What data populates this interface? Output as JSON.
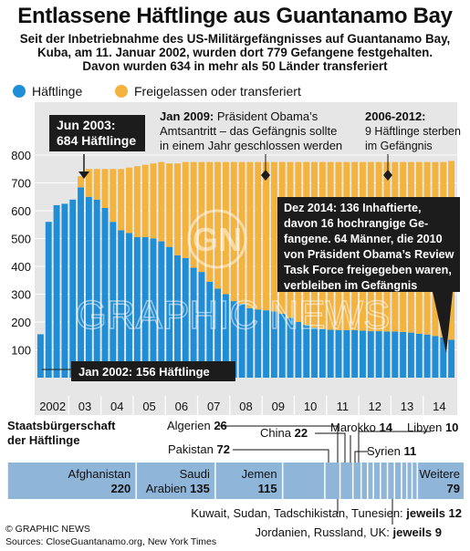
{
  "header": {
    "title": "Entlassene Häftlinge aus Guantanamo Bay",
    "subtitle_lines": [
      "Seit der Inbetriebnahme des US-Militärgefängnisses auf Guantanamo Bay,",
      "Kuba, am 11. Januar 2002, wurden dort 779 Gefangene festgehalten.",
      "Davon wurden 634 in mehr als 50 Länder transferiert"
    ]
  },
  "legend": {
    "detainees": "Häftlinge",
    "released": "Freigelassen oder transferiert"
  },
  "colors": {
    "blue": "#1f8ed6",
    "orange": "#f3b33d",
    "chart_bg": "#e6e6e6",
    "callout_bg": "#1c1c1c",
    "nationality_bar": "#8fb6d9"
  },
  "chart_data": {
    "type": "bar",
    "stacked": true,
    "ylim": [
      0,
      800
    ],
    "yticks": [
      100,
      200,
      300,
      400,
      500,
      600,
      700,
      800
    ],
    "year_labels": [
      "2002",
      "03",
      "04",
      "05",
      "06",
      "07",
      "08",
      "09",
      "10",
      "11",
      "12",
      "13",
      "14"
    ],
    "x": [
      "2002-Q1",
      "2002-Q2",
      "2002-Q3",
      "2002-Q4",
      "2003-Q1",
      "2003-Q2",
      "2003-Q3",
      "2003-Q4",
      "2004-Q1",
      "2004-Q2",
      "2004-Q3",
      "2004-Q4",
      "2005-Q1",
      "2005-Q2",
      "2005-Q3",
      "2005-Q4",
      "2006-Q1",
      "2006-Q2",
      "2006-Q3",
      "2006-Q4",
      "2007-Q1",
      "2007-Q2",
      "2007-Q3",
      "2007-Q4",
      "2008-Q1",
      "2008-Q2",
      "2008-Q3",
      "2008-Q4",
      "2009-Q1",
      "2009-Q2",
      "2009-Q3",
      "2009-Q4",
      "2010-Q1",
      "2010-Q2",
      "2010-Q3",
      "2010-Q4",
      "2011-Q1",
      "2011-Q2",
      "2011-Q3",
      "2011-Q4",
      "2012-Q1",
      "2012-Q2",
      "2012-Q3",
      "2012-Q4",
      "2013-Q1",
      "2013-Q2",
      "2013-Q3",
      "2013-Q4",
      "2014-Q1",
      "2014-Q2",
      "2014-Q3",
      "2014-Q4"
    ],
    "series": [
      {
        "name": "Häftlinge",
        "values": [
          156,
          560,
          620,
          625,
          640,
          684,
          650,
          640,
          610,
          560,
          530,
          520,
          505,
          505,
          500,
          490,
          470,
          440,
          430,
          395,
          380,
          345,
          320,
          300,
          275,
          265,
          250,
          245,
          242,
          238,
          230,
          215,
          200,
          190,
          180,
          175,
          172,
          171,
          171,
          171,
          169,
          167,
          167,
          166,
          166,
          164,
          162,
          158,
          155,
          150,
          145,
          136
        ]
      },
      {
        "name": "Freigelassen oder transferiert",
        "values": [
          0,
          0,
          0,
          0,
          0,
          40,
          100,
          110,
          140,
          190,
          220,
          235,
          255,
          260,
          270,
          285,
          300,
          330,
          345,
          380,
          395,
          430,
          455,
          475,
          500,
          510,
          525,
          530,
          533,
          537,
          545,
          560,
          575,
          585,
          595,
          600,
          603,
          604,
          604,
          604,
          606,
          608,
          608,
          609,
          609,
          611,
          613,
          617,
          620,
          625,
          630,
          643
        ]
      }
    ]
  },
  "annotations": {
    "jun2003_line1": "Jun 2003:",
    "jun2003_line2": "684 Häftlinge",
    "jan2002": "Jan 2002: 156 Häftlinge",
    "jan2009_bold": "Jan 2009:",
    "jan2009_line1": "Präsident Obama’s",
    "jan2009_line2": "Amtsantritt – das Gefängnis sollte",
    "jan2009_line3": "in einem Jahr geschlossen werden",
    "y2006_bold": "2006-2012:",
    "y2006_line2": "9 Häftlinge sterben",
    "y2006_line3": "im Gefängnis",
    "dec2014_lines": [
      "Dez 2014: 136 Inhaftierte,",
      "davon 16 hochrangige Ge-",
      "fangene. 64 Männer, die 2010",
      "von Präsident Obama’s Review",
      "Task Force freigegeben waren,",
      "verbleiben im Gefängnis"
    ]
  },
  "watermark": {
    "logo": "GN",
    "text": "GRAPHIC NEWS"
  },
  "nationality": {
    "heading_line1": "Staatsbürgerschaft",
    "heading_line2": "der Häftlinge",
    "segments": [
      {
        "label": "Afghanistan",
        "value": 220
      },
      {
        "label": "Saudi Arabien",
        "label_l1": "Saudi",
        "label_l2": "Arabien",
        "value": 135
      },
      {
        "label": "Jemen",
        "value": 115
      },
      {
        "label": "Pakistan",
        "value": 72
      },
      {
        "label": "Algerien",
        "value": 26
      },
      {
        "label": "China",
        "value": 22
      },
      {
        "label": "Marokko",
        "value": 14
      },
      {
        "label": "Syrien",
        "value": 11
      },
      {
        "label": "Libyen",
        "value": 10
      },
      {
        "label": "Weitere",
        "value": 79
      }
    ],
    "kuwait_text": "Kuwait, Sudan, Tadschikistan, Tunesien: ",
    "kuwait_bold": "jeweils 12",
    "jordan_text": "Jordanien, Russland, UK: ",
    "jordan_bold": "jeweils 9"
  },
  "footer": {
    "copyright": "© GRAPHIC NEWS",
    "sources": "Sources: CloseGuantanamo.org, New York Times"
  }
}
